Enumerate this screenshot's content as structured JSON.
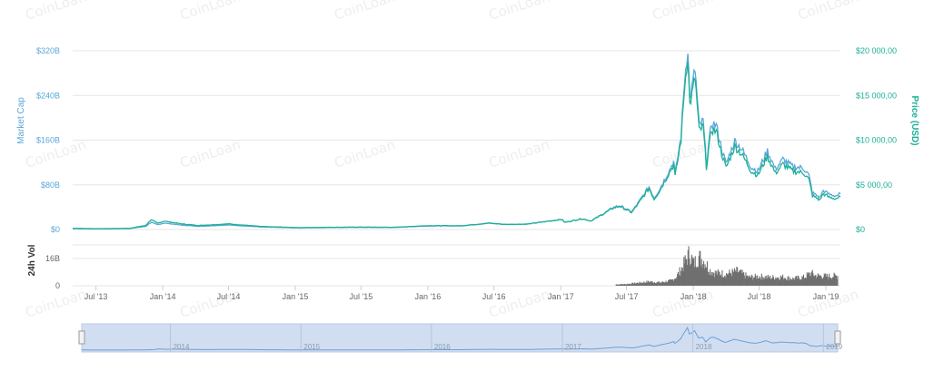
{
  "watermark": "CoinLoan",
  "chart_data": {
    "type": "line",
    "title": "",
    "legend": "none",
    "grid": true,
    "colors": {
      "market_cap": "#5aa7d8",
      "price": "#1cb097",
      "volume": "#6f6f6f",
      "navigator_fill": "#c9d8ee",
      "navigator_line": "#6d9fd4",
      "grid": "#e6e6e6",
      "tick_text": "#666666"
    },
    "axes": {
      "market_cap": {
        "label": "Market Cap",
        "ticks": [
          "$0",
          "$80B",
          "$160B",
          "$240B",
          "$320B"
        ],
        "range": [
          0,
          320
        ]
      },
      "price": {
        "label": "Price (USD)",
        "ticks": [
          "$0",
          "$5 000,00",
          "$10 000,00",
          "$15 000,00",
          "$20 000,00"
        ],
        "range": [
          0,
          20000
        ]
      },
      "volume": {
        "label": "24h Vol",
        "ticks": [
          "0",
          "16B"
        ],
        "range": [
          0,
          24
        ]
      },
      "x": {
        "ticks": [
          "Jul '13",
          "Jan '14",
          "Jul '14",
          "Jan '15",
          "Jul '15",
          "Jan '16",
          "Jul '16",
          "Jan '17",
          "Jul '17",
          "Jan '18",
          "Jul '18",
          "Jan '19"
        ],
        "range": [
          "2013-04-28",
          "2019-02-10"
        ]
      },
      "navigator": {
        "ticks": [
          "2014",
          "2015",
          "2016",
          "2017",
          "2018",
          "2019"
        ]
      }
    },
    "series": [
      {
        "name": "Price (USD)",
        "axis": "price",
        "x": [
          "2013-04-28",
          "2013-07-01",
          "2013-10-01",
          "2013-11-15",
          "2013-11-30",
          "2013-12-18",
          "2014-01-05",
          "2014-02-20",
          "2014-04-10",
          "2014-07-01",
          "2014-10-01",
          "2015-01-15",
          "2015-04-01",
          "2015-07-01",
          "2015-10-01",
          "2016-01-01",
          "2016-04-01",
          "2016-06-18",
          "2016-08-01",
          "2016-10-01",
          "2017-01-04",
          "2017-01-12",
          "2017-03-01",
          "2017-03-25",
          "2017-05-01",
          "2017-05-25",
          "2017-06-12",
          "2017-07-15",
          "2017-08-01",
          "2017-09-01",
          "2017-09-15",
          "2017-10-01",
          "2017-11-08",
          "2017-11-12",
          "2017-11-28",
          "2017-12-08",
          "2017-12-17",
          "2017-12-22",
          "2017-12-28",
          "2018-01-06",
          "2018-01-17",
          "2018-01-28",
          "2018-02-06",
          "2018-02-20",
          "2018-03-05",
          "2018-03-20",
          "2018-04-01",
          "2018-04-25",
          "2018-05-15",
          "2018-06-10",
          "2018-06-28",
          "2018-07-24",
          "2018-08-15",
          "2018-09-05",
          "2018-10-01",
          "2018-11-01",
          "2018-11-15",
          "2018-11-25",
          "2018-12-15",
          "2018-12-25",
          "2019-01-10",
          "2019-01-28",
          "2019-02-10"
        ],
        "values": [
          135,
          90,
          130,
          450,
          1100,
          700,
          940,
          640,
          450,
          630,
          330,
          210,
          250,
          270,
          250,
          430,
          420,
          720,
          570,
          615,
          1130,
          800,
          1200,
          950,
          1800,
          2400,
          2600,
          1900,
          2800,
          4600,
          3400,
          4400,
          7300,
          5900,
          10000,
          16000,
          19500,
          14000,
          15000,
          17000,
          11000,
          11500,
          7000,
          11200,
          11000,
          8500,
          6900,
          9300,
          8400,
          6500,
          6100,
          8200,
          6300,
          7300,
          6550,
          6350,
          5600,
          3800,
          3300,
          4000,
          3600,
          3450,
          3650
        ]
      },
      {
        "name": "Market Cap",
        "axis": "market_cap",
        "x": [
          "2013-04-28",
          "2013-07-01",
          "2013-10-01",
          "2013-11-15",
          "2013-11-30",
          "2013-12-18",
          "2014-01-05",
          "2014-02-20",
          "2014-04-10",
          "2014-07-01",
          "2014-10-01",
          "2015-01-15",
          "2015-04-01",
          "2015-07-01",
          "2015-10-01",
          "2016-01-01",
          "2016-04-01",
          "2016-06-18",
          "2016-08-01",
          "2016-10-01",
          "2017-01-04",
          "2017-01-12",
          "2017-03-01",
          "2017-03-25",
          "2017-05-01",
          "2017-05-25",
          "2017-06-12",
          "2017-07-15",
          "2017-08-01",
          "2017-09-01",
          "2017-09-15",
          "2017-10-01",
          "2017-11-08",
          "2017-11-12",
          "2017-11-28",
          "2017-12-08",
          "2017-12-17",
          "2017-12-22",
          "2017-12-28",
          "2018-01-06",
          "2018-01-17",
          "2018-01-28",
          "2018-02-06",
          "2018-02-20",
          "2018-03-05",
          "2018-03-20",
          "2018-04-01",
          "2018-04-25",
          "2018-05-15",
          "2018-06-10",
          "2018-06-28",
          "2018-07-24",
          "2018-08-15",
          "2018-09-05",
          "2018-10-01",
          "2018-11-01",
          "2018-11-15",
          "2018-11-25",
          "2018-12-15",
          "2018-12-25",
          "2019-01-10",
          "2019-01-28",
          "2019-02-10"
        ],
        "values": [
          1.5,
          1.0,
          1.6,
          5.5,
          13.0,
          8.5,
          11.5,
          8.0,
          5.6,
          8.1,
          4.4,
          2.9,
          3.5,
          3.8,
          3.6,
          6.4,
          6.4,
          11.2,
          9.0,
          9.7,
          18.1,
          12.8,
          19.4,
          15.4,
          29.4,
          39.4,
          42.8,
          31.5,
          46.6,
          76.4,
          56.5,
          73.2,
          121.7,
          98.6,
          167.4,
          268.0,
          327.0,
          235.0,
          252.5,
          286.5,
          185.5,
          194.2,
          118.3,
          189.8,
          186.6,
          144.5,
          117.4,
          158.5,
          143.5,
          111.2,
          104.7,
          140.6,
          108.2,
          125.7,
          112.9,
          109.8,
          97.0,
          65.9,
          57.4,
          69.7,
          62.9,
          60.3,
          63.9
        ]
      },
      {
        "name": "24h Vol",
        "axis": "volume",
        "x": [
          "2017-06-01",
          "2017-07-01",
          "2017-08-01",
          "2017-09-01",
          "2017-10-01",
          "2017-11-01",
          "2017-11-15",
          "2017-12-01",
          "2017-12-10",
          "2017-12-20",
          "2018-01-01",
          "2018-01-15",
          "2018-02-01",
          "2018-02-15",
          "2018-03-01",
          "2018-04-01",
          "2018-05-01",
          "2018-06-01",
          "2018-07-01",
          "2018-08-01",
          "2018-09-01",
          "2018-10-01",
          "2018-11-01",
          "2018-11-20",
          "2018-12-01",
          "2019-01-01",
          "2019-02-01"
        ],
        "values": [
          0.8,
          1.0,
          1.7,
          2.4,
          1.9,
          3.0,
          5.5,
          11.0,
          15.0,
          19.0,
          13.0,
          17.0,
          14.0,
          9.0,
          7.5,
          7.0,
          8.5,
          5.0,
          5.5,
          4.8,
          5.2,
          4.2,
          5.0,
          7.5,
          6.0,
          5.5,
          5.8
        ]
      }
    ]
  }
}
